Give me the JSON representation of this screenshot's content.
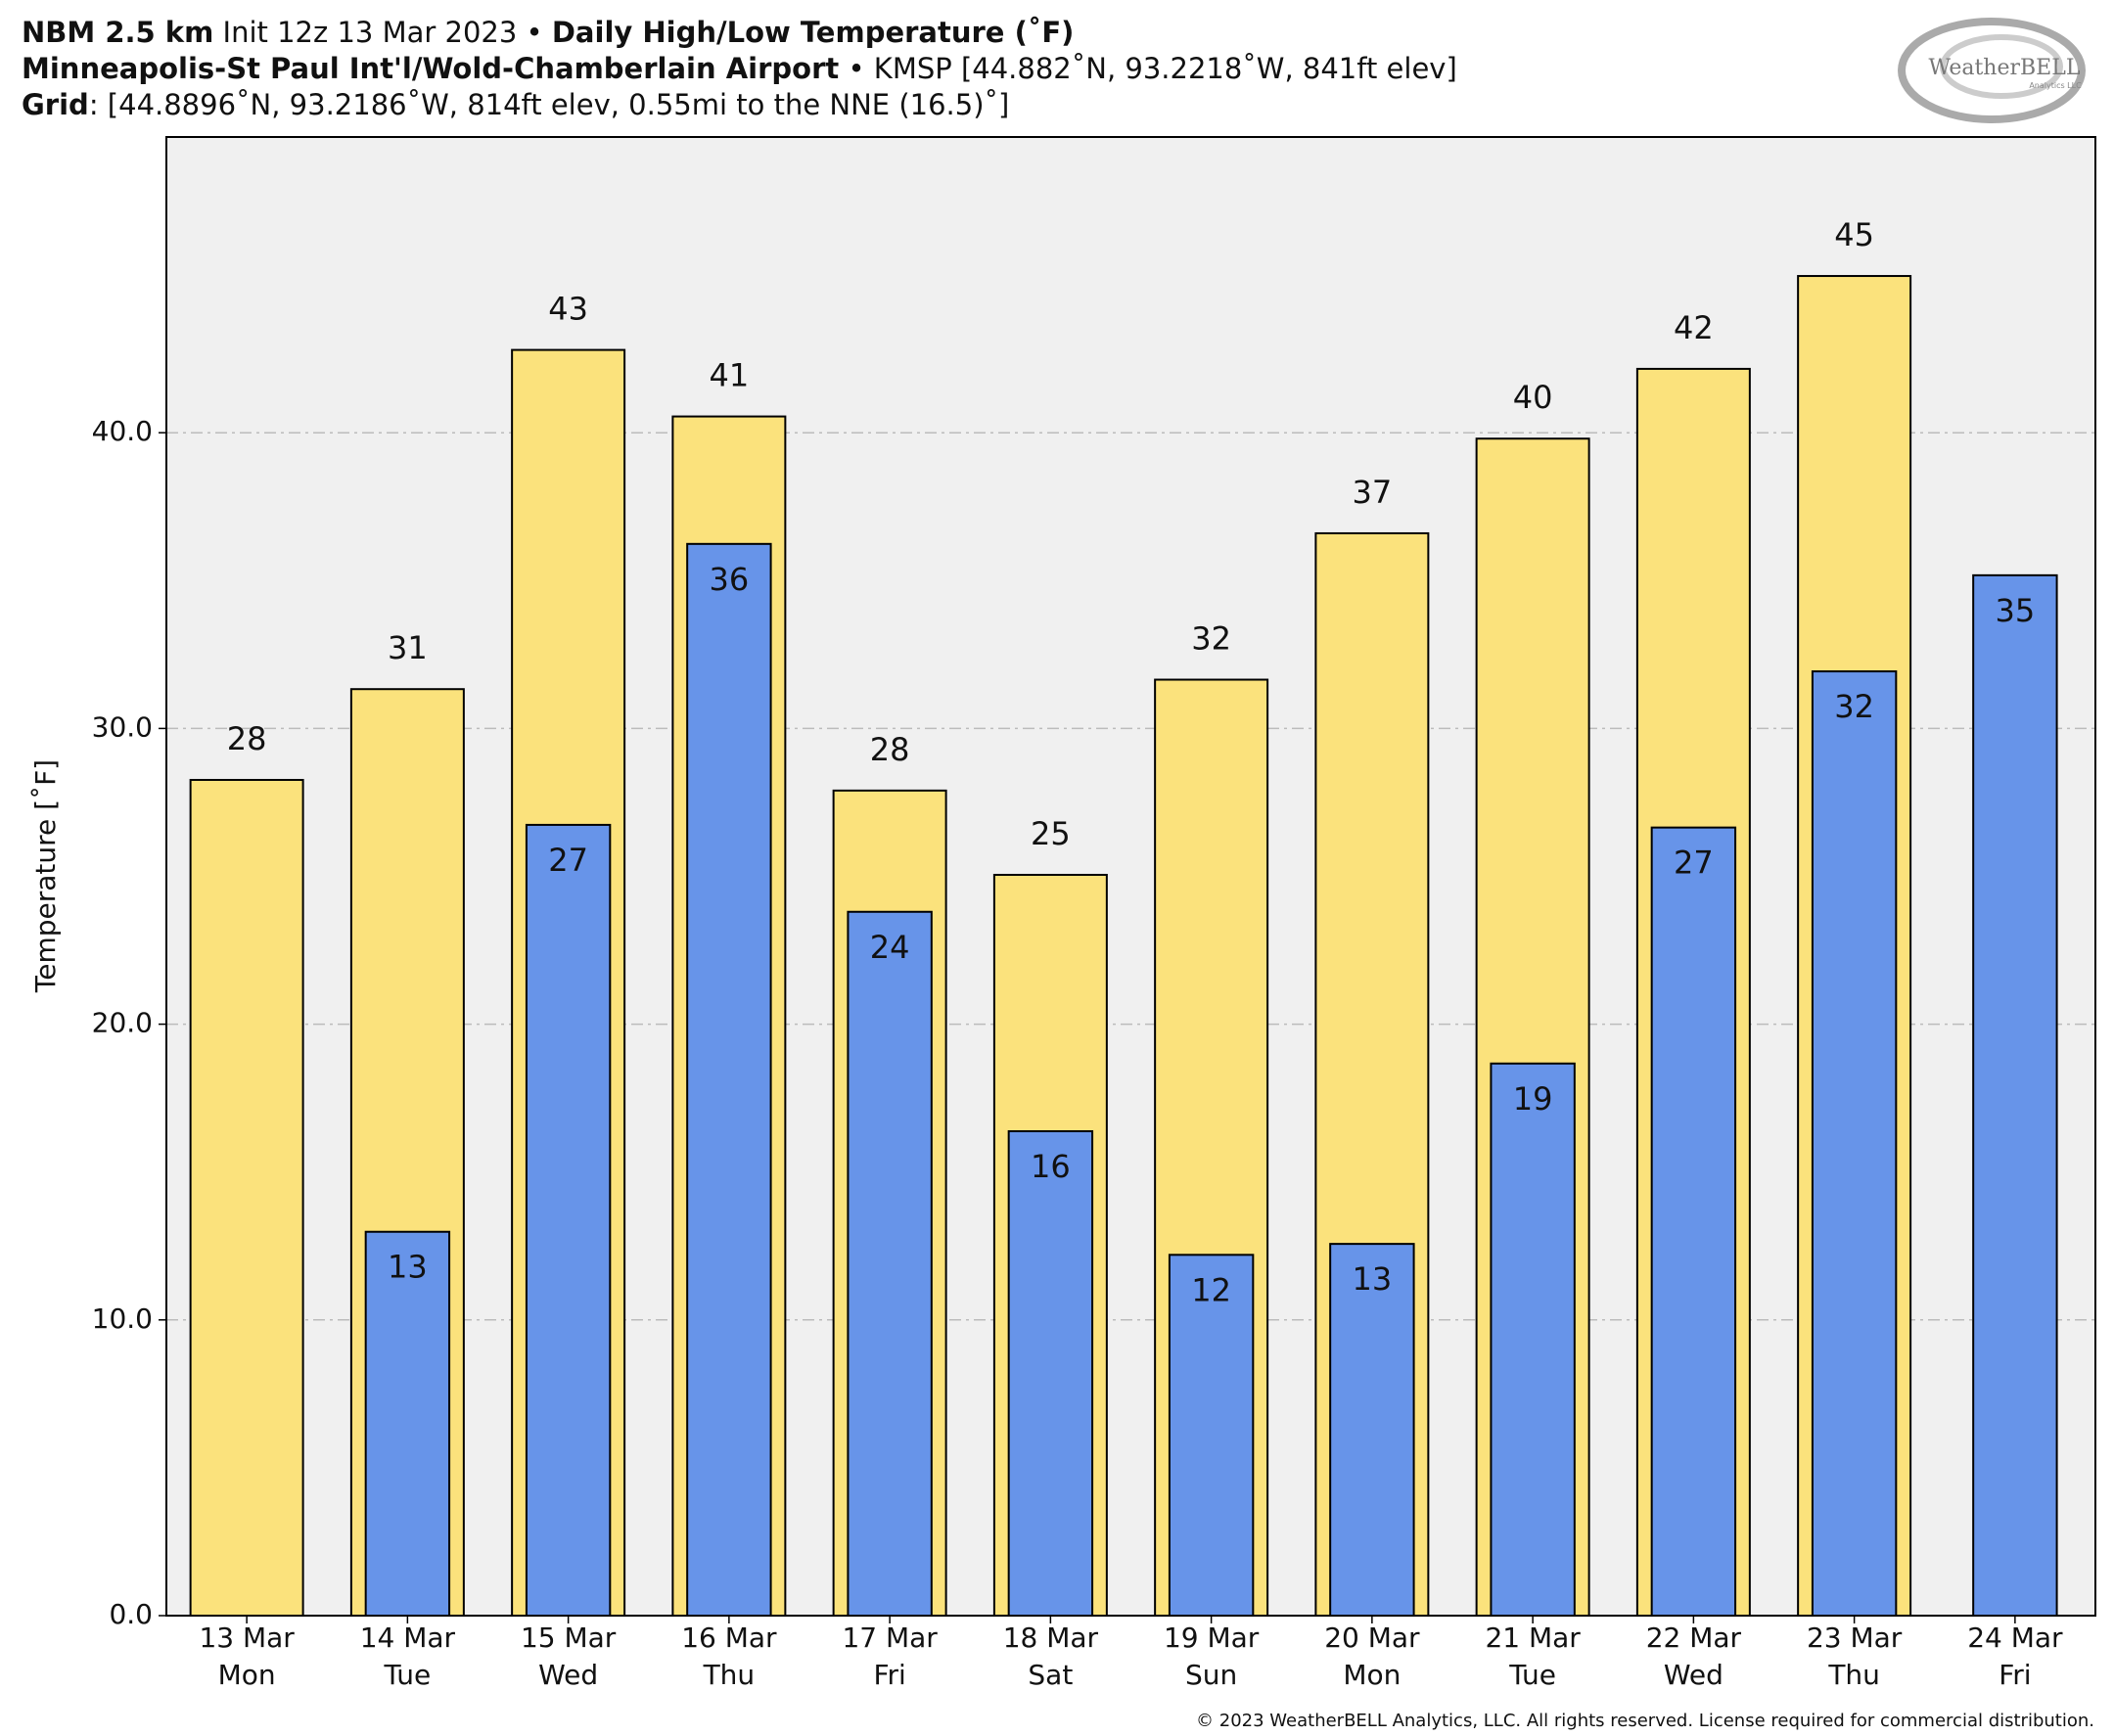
{
  "header": {
    "line1": [
      "NBM 2.5 km",
      "Init 12z 13 Mar 2023 •",
      "Daily High/Low Temperature (˚F)"
    ],
    "line2": [
      "Minneapolis-St Paul Int'l/Wold-Chamberlain Airport",
      "• KMSP [44.882˚N, 93.2218˚W, 841ft elev]"
    ],
    "line3": [
      "Grid",
      ": [44.8896˚N, 93.2186˚W, 814ft elev, 0.55mi to the NNE (16.5)˚]"
    ],
    "logo": [
      "WeatherBELL",
      "Analytics LLC"
    ],
    "copyright": "© 2023 WeatherBELL Analytics, LLC. All rights reserved. License required for commercial distribution."
  },
  "chart_data": {
    "type": "bar",
    "y_label": "Temperature [˚F]",
    "categories": [
      [
        "13 Mar",
        "Mon"
      ],
      [
        "14 Mar",
        "Tue"
      ],
      [
        "15 Mar",
        "Wed"
      ],
      [
        "16 Mar",
        "Thu"
      ],
      [
        "17 Mar",
        "Fri"
      ],
      [
        "18 Mar",
        "Sat"
      ],
      [
        "19 Mar",
        "Sun"
      ],
      [
        "20 Mar",
        "Mon"
      ],
      [
        "21 Mar",
        "Tue"
      ],
      [
        "22 Mar",
        "Wed"
      ],
      [
        "23 Mar",
        "Thu"
      ],
      [
        "24 Mar",
        "Fri"
      ]
    ],
    "series": [
      {
        "color": "#fbe27c",
        "values": [
          28.26,
          31.33,
          42.8,
          40.55,
          27.9,
          25.05,
          31.65,
          36.6,
          39.8,
          42.16,
          45.3,
          null
        ],
        "value_labels": [
          "28",
          "31",
          "43",
          "41",
          "28",
          "25",
          "32",
          "37",
          "40",
          "42",
          "45",
          null
        ]
      },
      {
        "color": "#6794e9",
        "values": [
          null,
          12.98,
          26.74,
          36.24,
          23.8,
          16.38,
          12.2,
          12.57,
          18.67,
          26.65,
          31.93,
          35.18
        ],
        "value_labels": [
          null,
          "13",
          "27",
          "36",
          "24",
          "16",
          "12",
          "13",
          "19",
          "27",
          "32",
          "35"
        ]
      }
    ],
    "ylim": [
      0,
      50
    ],
    "yticks": [
      {
        "value": 0,
        "label": "0.0"
      },
      {
        "value": 10,
        "label": "10.0"
      },
      {
        "value": 20,
        "label": "20.0"
      },
      {
        "value": 30,
        "label": "30.0"
      },
      {
        "value": 40,
        "label": "40.0"
      }
    ],
    "grid": true,
    "background": "#f0f0f0"
  }
}
